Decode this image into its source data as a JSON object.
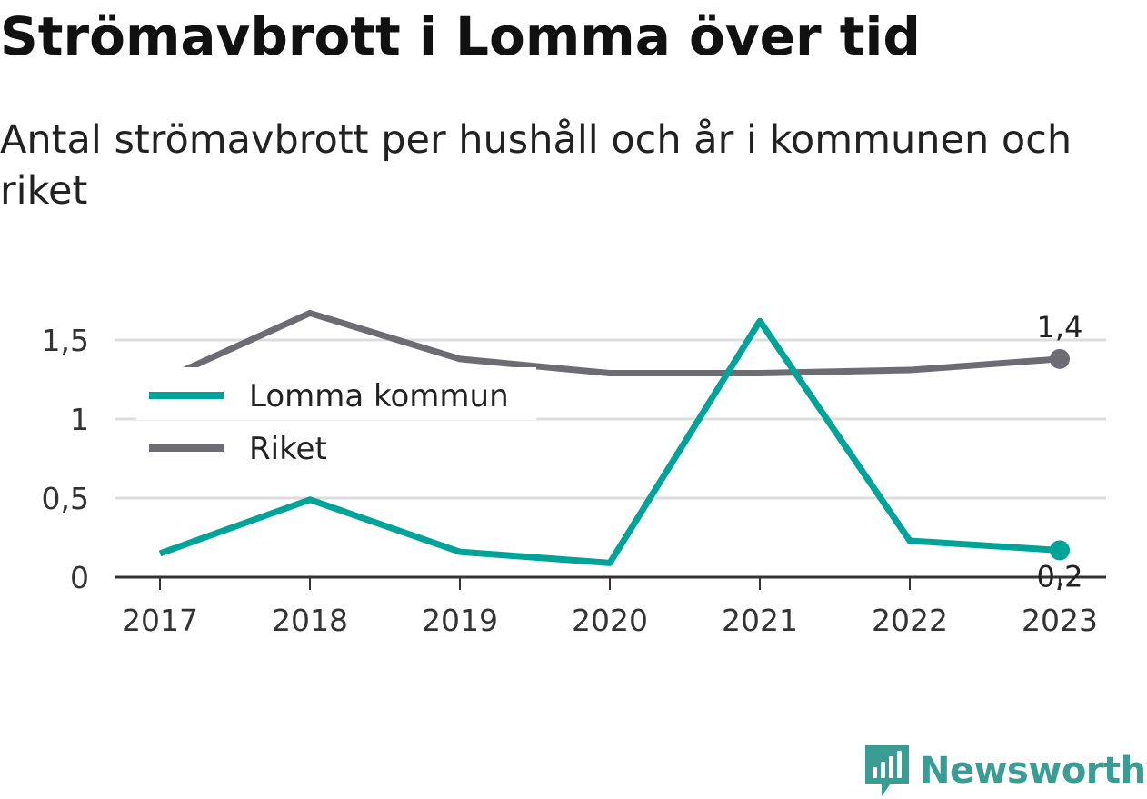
{
  "title": "Strömavbrott i Lomma över tid",
  "subtitle": "Antal strömavbrott per hushåll och år i kommunen och riket",
  "brand": "Newsworthy",
  "colors": {
    "lomma": "#00a398",
    "riket": "#6d6c73",
    "grid": "#dddddd",
    "axis": "#333333",
    "brand": "#3b9c94"
  },
  "chart_data": {
    "type": "line",
    "x": [
      "2017",
      "2018",
      "2019",
      "2020",
      "2021",
      "2022",
      "2023"
    ],
    "y_ticks": [
      {
        "value": 0,
        "label": "0"
      },
      {
        "value": 0.5,
        "label": "0,5"
      },
      {
        "value": 1,
        "label": "1"
      },
      {
        "value": 1.5,
        "label": "1,5"
      }
    ],
    "ylim": [
      0,
      1.8
    ],
    "grid": true,
    "legend_position": "left",
    "series": [
      {
        "name": "Lomma kommun",
        "values": [
          0.15,
          0.49,
          0.16,
          0.09,
          1.62,
          0.23,
          0.17
        ],
        "end_label": "0,2"
      },
      {
        "name": "Riket",
        "values": [
          1.24,
          1.67,
          1.38,
          1.29,
          1.29,
          1.31,
          1.38
        ],
        "end_label": "1,4"
      }
    ]
  }
}
